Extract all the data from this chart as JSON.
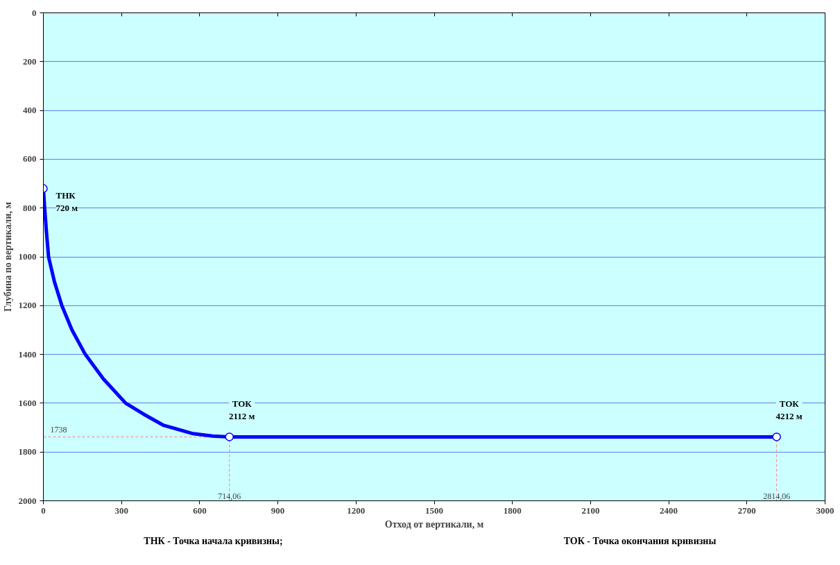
{
  "chart_data": {
    "type": "line",
    "xlabel": "Отход от вертикали, м",
    "ylabel": "Глубина по вертикали, м",
    "xlim": [
      0,
      3000
    ],
    "xticks": [
      0,
      300,
      600,
      900,
      1200,
      1500,
      1800,
      2100,
      2400,
      2700,
      3000
    ],
    "ylim": [
      2000,
      0
    ],
    "yticks": [
      0,
      200,
      400,
      600,
      800,
      1000,
      1200,
      1400,
      1600,
      1800,
      2000
    ],
    "grid": "y",
    "series": [
      {
        "color": "#0000ff",
        "x": [
          0,
          5,
          12,
          20,
          42,
          71,
          110,
          161,
          230,
          316,
          385,
          460,
          575,
          650,
          714.06,
          2814.06
        ],
        "values": [
          720,
          800,
          900,
          1000,
          1100,
          1200,
          1300,
          1400,
          1500,
          1600,
          1645,
          1690,
          1725,
          1735,
          1738,
          1738
        ]
      },
      {
        "type": "scatter",
        "color": "#0000ff",
        "x": [
          0,
          714.06,
          2814.06
        ],
        "values": [
          720,
          1738,
          1738
        ],
        "marker": "circle"
      }
    ],
    "ref_lines": [
      {
        "axis": "y",
        "value": 1738,
        "label": "1738",
        "color": "#ff8080",
        "line_style": "dashed"
      },
      {
        "axis": "x",
        "value": 714.06,
        "label": "714,06",
        "color": "#ff8080",
        "line_style": "dashed"
      },
      {
        "axis": "x",
        "value": 2814.06,
        "label": "2814,06",
        "color": "#ff8080",
        "line_style": "dashed"
      }
    ],
    "annotations": [
      {
        "text": "ТНК\n720 м",
        "x": 0,
        "y": 720
      },
      {
        "text": "ТОК\n2112 м",
        "x": 714.06,
        "y": 1738
      },
      {
        "text": "ТОК\n4212 м",
        "x": 2814.06,
        "y": 1738
      },
      "ТНК - Точка начала кривизны;",
      "ТОК - Точка окончания кривизны"
    ]
  }
}
